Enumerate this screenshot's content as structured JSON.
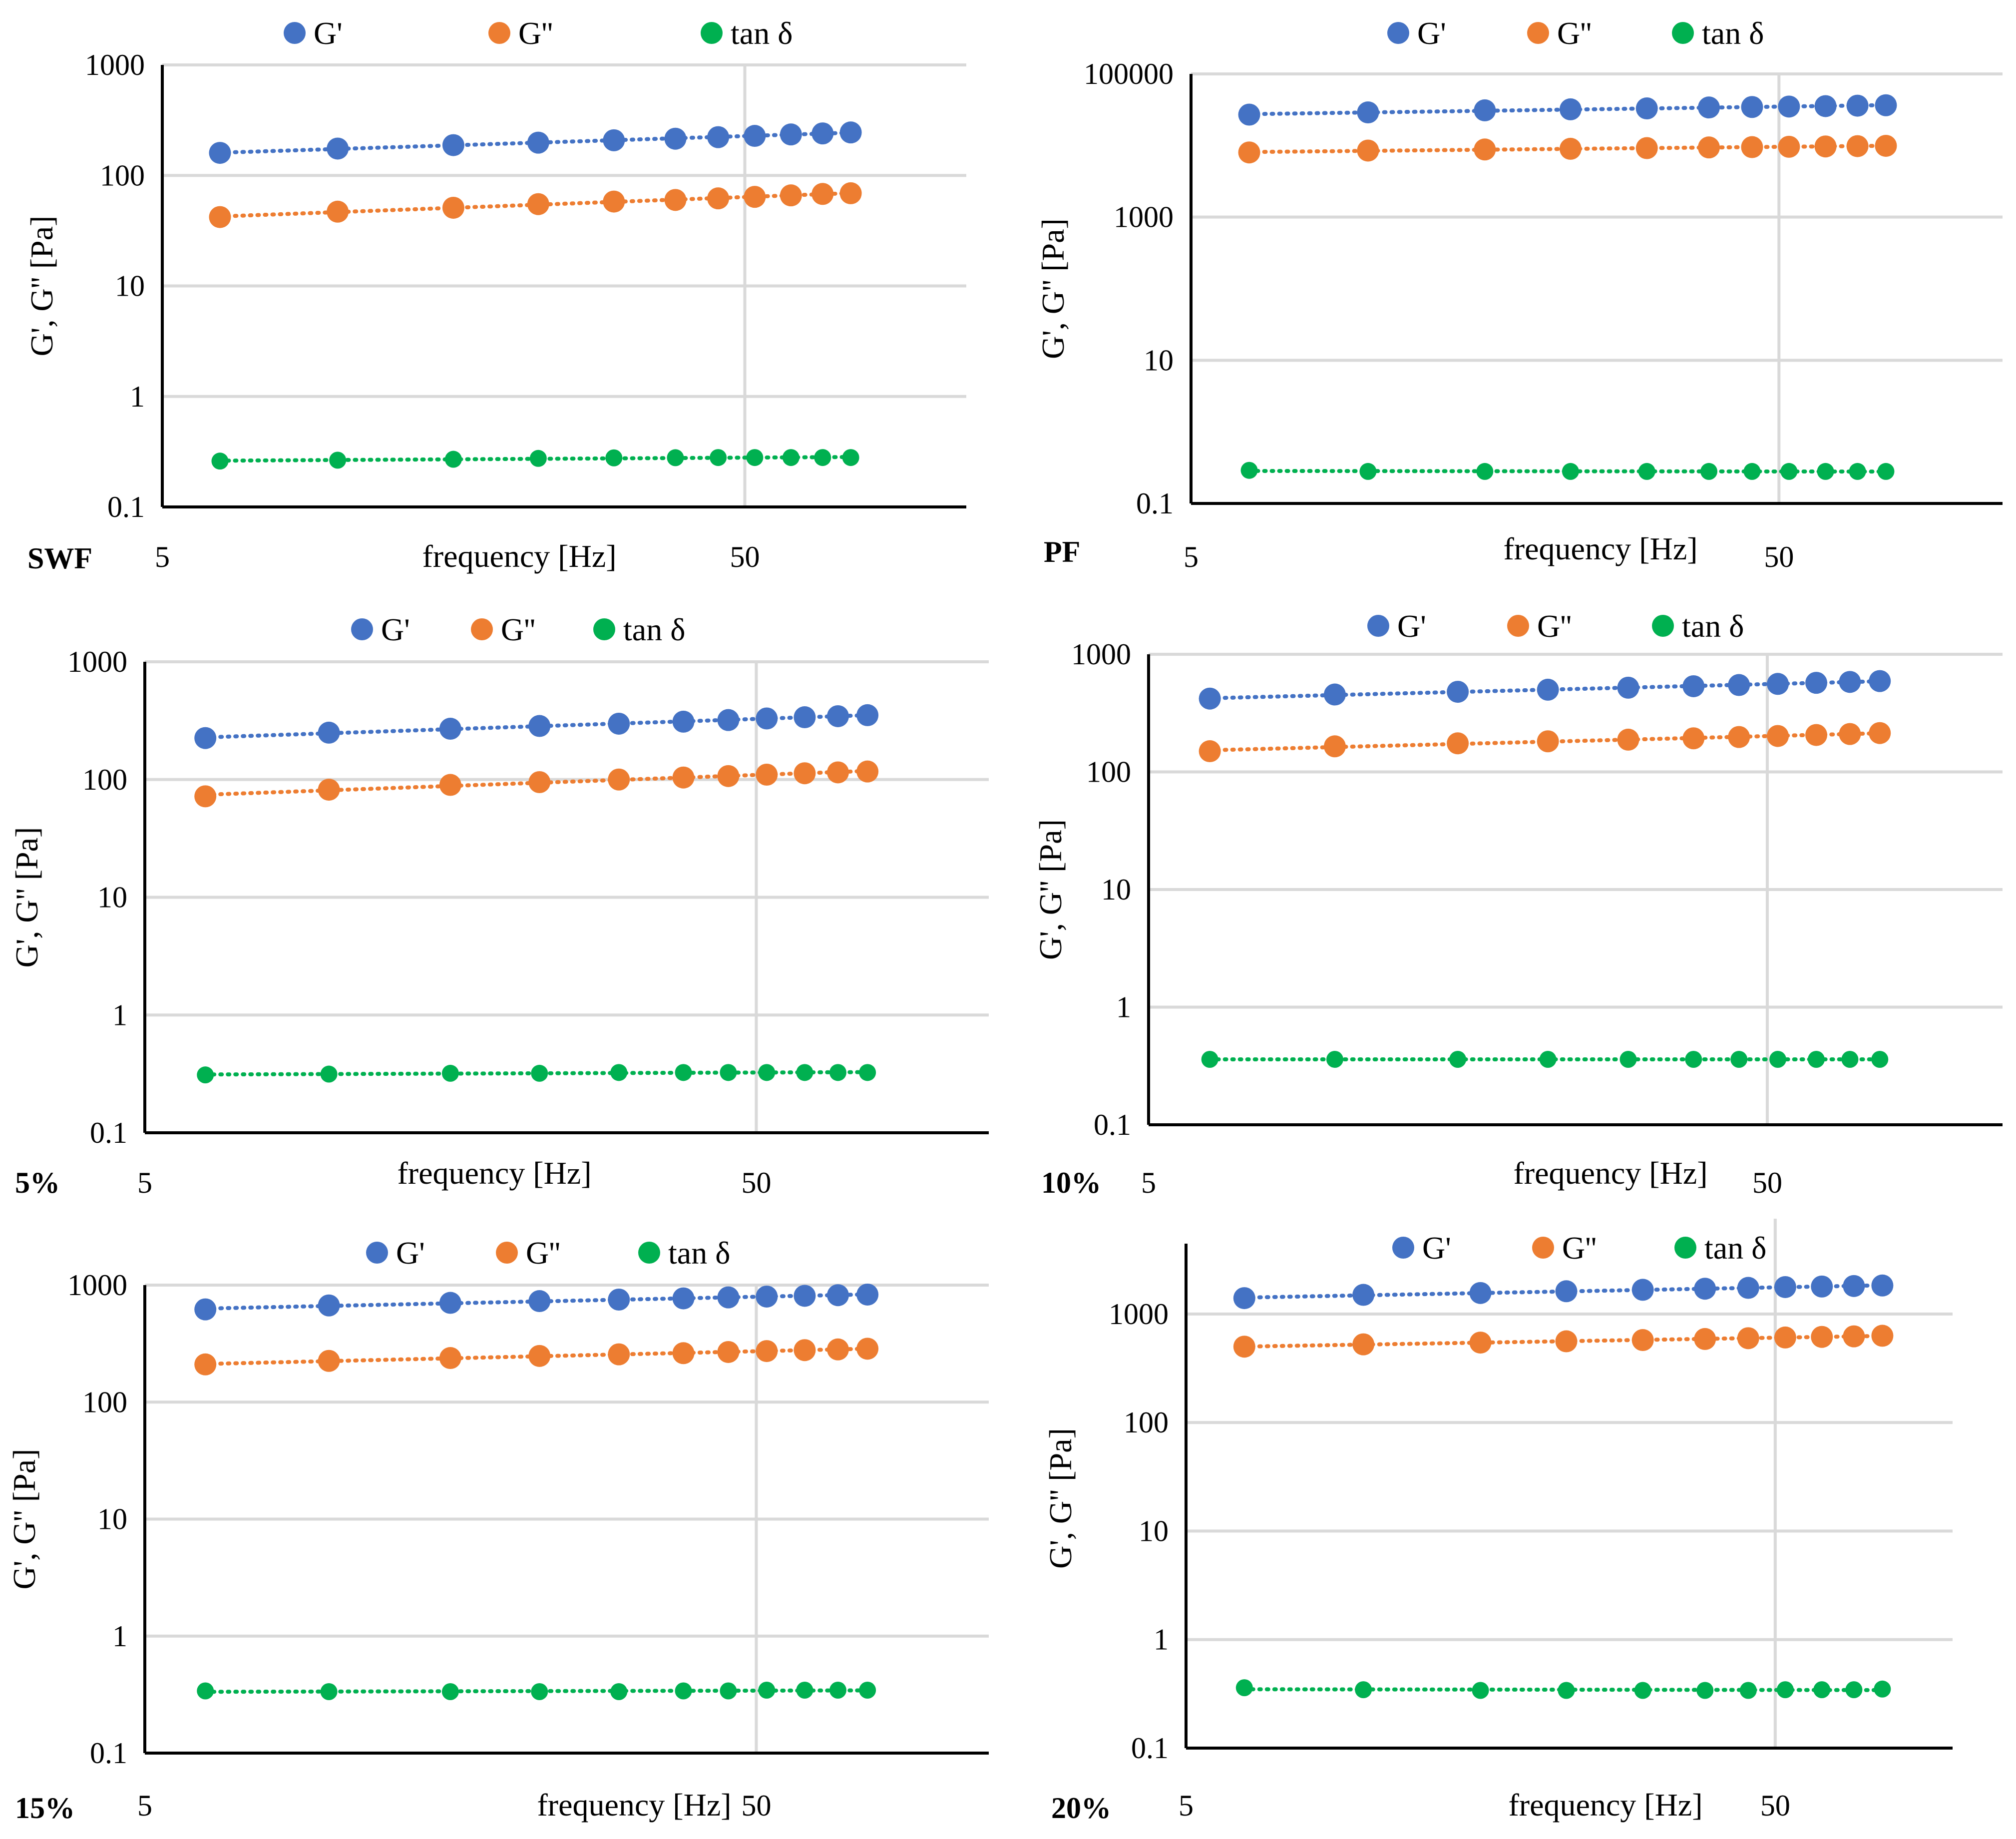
{
  "figure": {
    "xlabel": "frequency [Hz]",
    "ylabel": "G', G'' [Pa]",
    "colors": {
      "G_prime": "#4472C4",
      "G_double_prime": "#ED7D31",
      "tan_delta": "#00B050"
    }
  },
  "chart_data": [
    {
      "type": "scatter",
      "panel_label": "SWF",
      "title": "",
      "xlabel": "frequency [Hz]",
      "ylabel": "G', G'' [Pa]",
      "xscale": "log",
      "yscale": "log",
      "xlim": [
        5,
        120
      ],
      "ylim": [
        0.1,
        1000
      ],
      "xticks": [
        5,
        50
      ],
      "yticks": [
        0.1,
        1,
        10,
        100,
        1000
      ],
      "ytick_labels": [
        "0.1",
        "1",
        "10",
        "100",
        "1000"
      ],
      "xtick_labels": [
        "5",
        "50"
      ],
      "legend": [
        "G'",
        "G''",
        "tan δ"
      ],
      "legend_position": "top-center",
      "x": [
        6.28,
        10,
        15.8,
        22.1,
        29.8,
        38,
        45,
        52,
        60,
        68,
        76
      ],
      "series": [
        {
          "name": "G'",
          "values": [
            160,
            175,
            188,
            198,
            208,
            215,
            222,
            228,
            235,
            240,
            245
          ]
        },
        {
          "name": "G''",
          "values": [
            42,
            47,
            51,
            55,
            58,
            60,
            62,
            64,
            66,
            68,
            69
          ]
        },
        {
          "name": "tan δ",
          "values": [
            0.26,
            0.265,
            0.27,
            0.275,
            0.278,
            0.279,
            0.28,
            0.28,
            0.28,
            0.28,
            0.28
          ]
        }
      ]
    },
    {
      "type": "scatter",
      "panel_label": "PF",
      "title": "",
      "xlabel": "frequency [Hz]",
      "ylabel": "G', G'' [Pa]",
      "xscale": "log",
      "yscale": "log",
      "xlim": [
        5,
        120
      ],
      "ylim": [
        0.1,
        100000
      ],
      "xticks": [
        5,
        50
      ],
      "yticks": [
        0.1,
        10,
        1000,
        100000
      ],
      "ytick_labels": [
        "0.1",
        "10",
        "1000",
        "100000"
      ],
      "xtick_labels": [
        "5",
        "50"
      ],
      "legend": [
        "G'",
        "G''",
        "tan δ"
      ],
      "legend_position": "top-center",
      "x": [
        6.28,
        10,
        15.8,
        22.1,
        29.8,
        38,
        45,
        52,
        60,
        68,
        76
      ],
      "series": [
        {
          "name": "G'",
          "values": [
            27000,
            29000,
            31000,
            32000,
            33000,
            34000,
            34500,
            35000,
            35500,
            36000,
            36500
          ]
        },
        {
          "name": "G''",
          "values": [
            8000,
            8500,
            8800,
            9000,
            9200,
            9400,
            9500,
            9600,
            9700,
            9800,
            9900
          ]
        },
        {
          "name": "tan δ",
          "values": [
            0.29,
            0.28,
            0.28,
            0.28,
            0.28,
            0.28,
            0.28,
            0.28,
            0.28,
            0.28,
            0.28
          ]
        }
      ]
    },
    {
      "type": "scatter",
      "panel_label": "5%",
      "title": "",
      "xlabel": "frequency [Hz]",
      "ylabel": "G', G'' [Pa]",
      "xscale": "log",
      "yscale": "log",
      "xlim": [
        5,
        120
      ],
      "ylim": [
        0.1,
        1000
      ],
      "xticks": [
        5,
        50
      ],
      "yticks": [
        0.1,
        1,
        10,
        100,
        1000
      ],
      "ytick_labels": [
        "0.1",
        "1",
        "10",
        "100",
        "1000"
      ],
      "xtick_labels": [
        "5",
        "50"
      ],
      "legend": [
        "G'",
        "G''",
        "tan δ"
      ],
      "legend_position": "top-center",
      "x": [
        6.28,
        10,
        15.8,
        22.1,
        29.8,
        38,
        45,
        52,
        60,
        68,
        76
      ],
      "series": [
        {
          "name": "G'",
          "values": [
            225,
            250,
            270,
            285,
            298,
            310,
            320,
            330,
            338,
            345,
            352
          ]
        },
        {
          "name": "G''",
          "values": [
            72,
            82,
            90,
            95,
            100,
            104,
            107,
            110,
            113,
            115,
            117
          ]
        },
        {
          "name": "tan δ",
          "values": [
            0.31,
            0.315,
            0.32,
            0.32,
            0.325,
            0.325,
            0.325,
            0.325,
            0.325,
            0.325,
            0.325
          ]
        }
      ]
    },
    {
      "type": "scatter",
      "panel_label": "10%",
      "title": "",
      "xlabel": "frequency [Hz]",
      "ylabel": "G', G'' [Pa]",
      "xscale": "log",
      "yscale": "log",
      "xlim": [
        5,
        120
      ],
      "ylim": [
        0.1,
        1000
      ],
      "xticks": [
        5,
        50
      ],
      "yticks": [
        0.1,
        1,
        10,
        100,
        1000
      ],
      "ytick_labels": [
        "0.1",
        "1",
        "10",
        "100",
        "1000"
      ],
      "xtick_labels": [
        "5",
        "50"
      ],
      "legend": [
        "G'",
        "G''",
        "tan δ"
      ],
      "legend_position": "top-center",
      "x": [
        6.28,
        10,
        15.8,
        22.1,
        29.8,
        38,
        45,
        52,
        60,
        68,
        76
      ],
      "series": [
        {
          "name": "G'",
          "values": [
            420,
            455,
            480,
            500,
            520,
            535,
            548,
            560,
            572,
            582,
            592
          ]
        },
        {
          "name": "G''",
          "values": [
            150,
            165,
            175,
            182,
            188,
            193,
            198,
            202,
            206,
            210,
            214
          ]
        },
        {
          "name": "tan δ",
          "values": [
            0.36,
            0.36,
            0.36,
            0.36,
            0.36,
            0.36,
            0.36,
            0.36,
            0.36,
            0.36,
            0.36
          ]
        }
      ]
    },
    {
      "type": "scatter",
      "panel_label": "15%",
      "title": "",
      "xlabel": "frequency [Hz]",
      "ylabel": "G', G'' [Pa]",
      "xscale": "log",
      "yscale": "log",
      "xlim": [
        5,
        120
      ],
      "ylim": [
        0.1,
        1000
      ],
      "xticks": [
        5,
        50
      ],
      "yticks": [
        0.1,
        1,
        10,
        100,
        1000
      ],
      "ytick_labels": [
        "0.1",
        "1",
        "10",
        "100",
        "1000"
      ],
      "xtick_labels": [
        "5",
        "50"
      ],
      "legend": [
        "G'",
        "G''",
        "tan δ"
      ],
      "legend_position": "top-center",
      "x": [
        6.28,
        10,
        15.8,
        22.1,
        29.8,
        38,
        45,
        52,
        60,
        68,
        76
      ],
      "series": [
        {
          "name": "G'",
          "values": [
            620,
            670,
            705,
            730,
            752,
            770,
            785,
            798,
            810,
            820,
            830
          ]
        },
        {
          "name": "G''",
          "values": [
            210,
            225,
            238,
            248,
            256,
            262,
            268,
            273,
            278,
            282,
            286
          ]
        },
        {
          "name": "tan δ",
          "values": [
            0.34,
            0.335,
            0.335,
            0.335,
            0.335,
            0.34,
            0.34,
            0.345,
            0.345,
            0.345,
            0.345
          ]
        }
      ]
    },
    {
      "type": "scatter",
      "panel_label": "20%",
      "title": "",
      "xlabel": "frequency [Hz]",
      "ylabel": "G', G'' [Pa]",
      "xscale": "log",
      "yscale": "log",
      "xlim": [
        5,
        100
      ],
      "ylim": [
        0.1,
        4000
      ],
      "xticks": [
        5,
        50
      ],
      "yticks": [
        0.1,
        1,
        10,
        100,
        1000
      ],
      "ytick_labels": [
        "0.1",
        "1",
        "10",
        "100",
        "1000"
      ],
      "xtick_labels": [
        "5",
        "50"
      ],
      "legend": [
        "G'",
        "G''",
        "tan δ"
      ],
      "legend_position": "top-center",
      "x": [
        6.28,
        10,
        15.8,
        22.1,
        29.8,
        38,
        45,
        52,
        60,
        68,
        76
      ],
      "series": [
        {
          "name": "G'",
          "values": [
            1400,
            1500,
            1560,
            1620,
            1670,
            1710,
            1740,
            1770,
            1790,
            1810,
            1830
          ]
        },
        {
          "name": "G''",
          "values": [
            500,
            525,
            545,
            560,
            575,
            588,
            598,
            607,
            615,
            622,
            630
          ]
        },
        {
          "name": "tan δ",
          "values": [
            0.36,
            0.345,
            0.34,
            0.34,
            0.34,
            0.34,
            0.34,
            0.345,
            0.345,
            0.345,
            0.35
          ]
        }
      ]
    }
  ]
}
